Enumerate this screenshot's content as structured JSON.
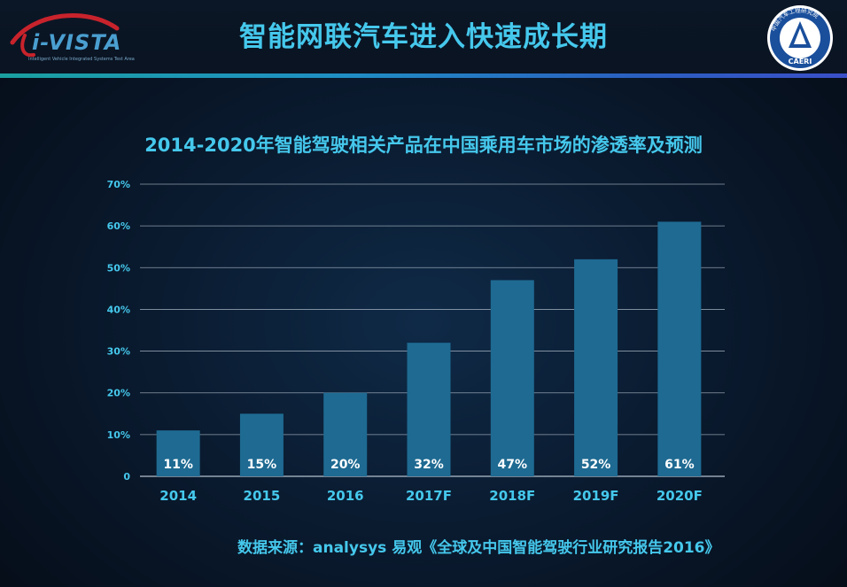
{
  "header": {
    "title": "智能网联汽车进入快速成长期",
    "logo_left": {
      "text": "i-VISTA",
      "tagline": "Intelligent Vehicle Integrated Systems Test Area"
    },
    "logo_right": {
      "text": "CAERI",
      "ring_text": "中国汽车工程研究院"
    }
  },
  "colors": {
    "accent": "#45c8ec",
    "bar": "#1e6a92",
    "bar_label": "#ffffff",
    "grid": "#c8d4e0"
  },
  "chart_data": {
    "type": "bar",
    "title": "2014-2020年智能驾驶相关产品在中国乘用车市场的渗透率及预测",
    "categories": [
      "2014",
      "2015",
      "2016",
      "2017F",
      "2018F",
      "2019F",
      "2020F"
    ],
    "values": [
      11,
      15,
      20,
      32,
      47,
      52,
      61
    ],
    "value_labels": [
      "11%",
      "15%",
      "20%",
      "32%",
      "47%",
      "52%",
      "61%"
    ],
    "yticks": [
      "0",
      "10%",
      "20%",
      "30%",
      "40%",
      "50%",
      "60%",
      "70%"
    ],
    "ylim": [
      0,
      70
    ],
    "grid": true,
    "legend": "none"
  },
  "source": "数据来源：analysys 易观《全球及中国智能驾驶行业研究报告2016》"
}
